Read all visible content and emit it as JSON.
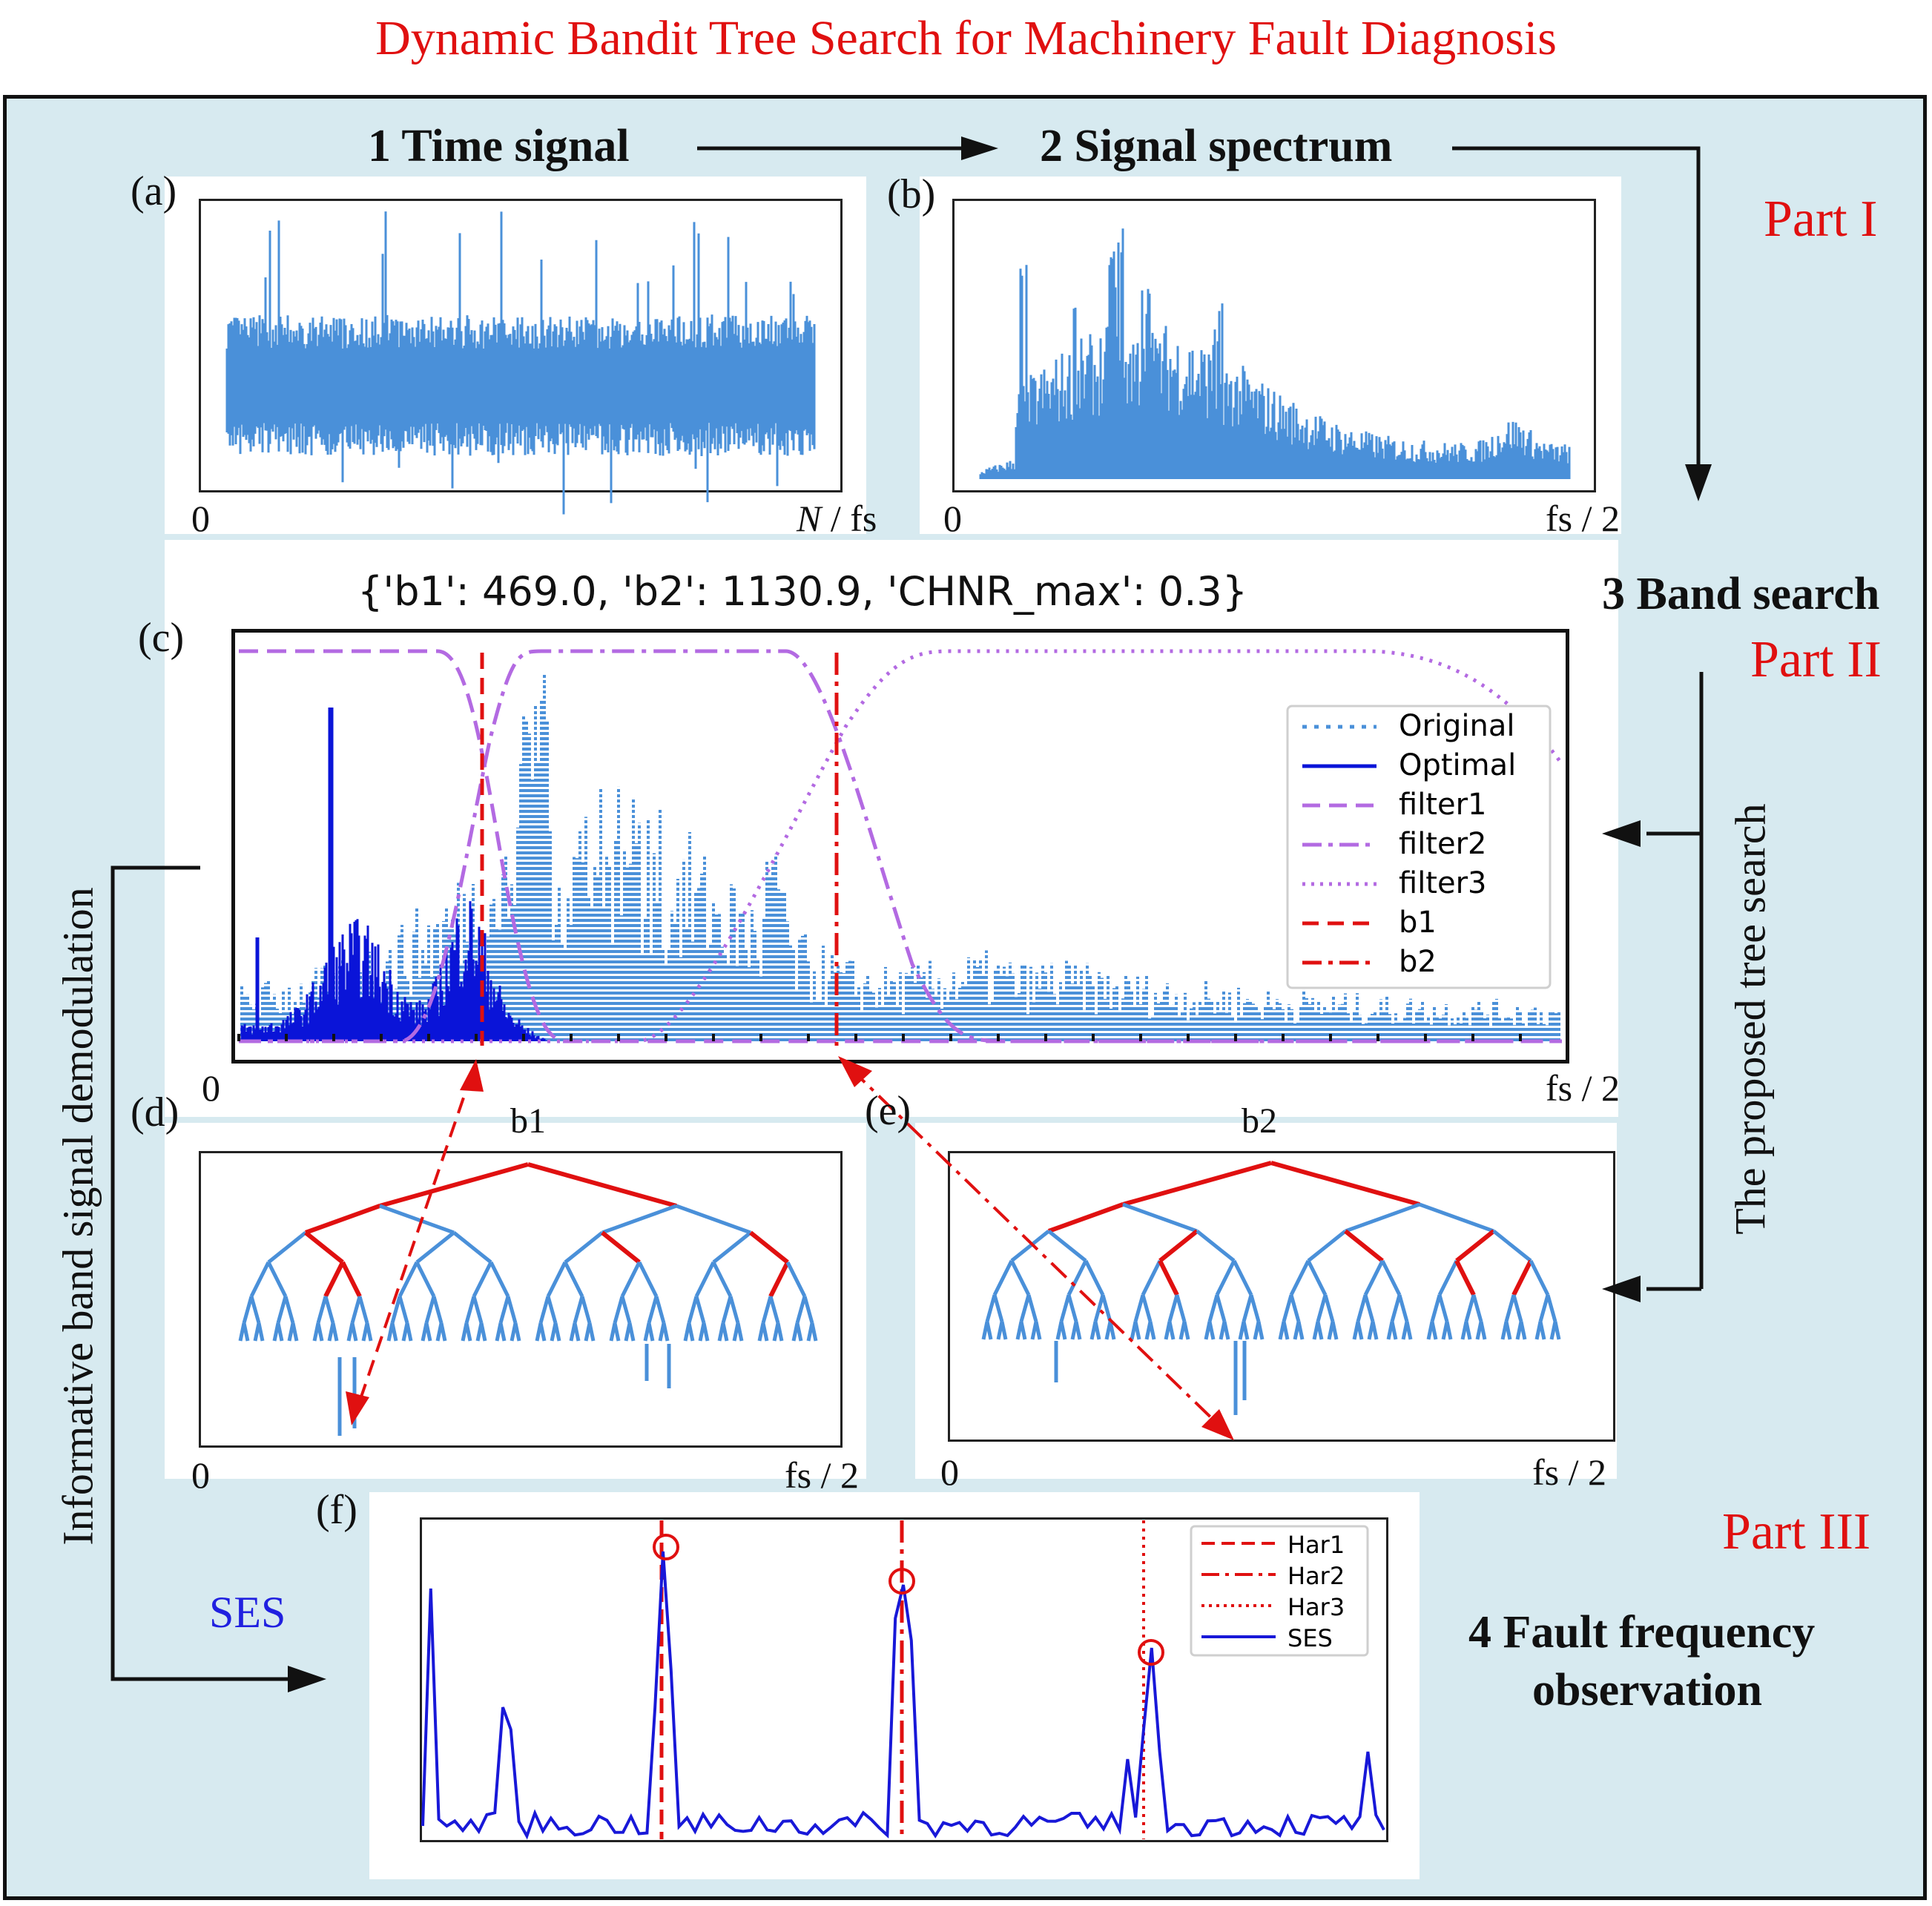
{
  "title": "Dynamic Bandit Tree Search for Machinery Fault Diagnosis",
  "steps": {
    "s1": "1 Time signal",
    "s2": "2 Signal spectrum",
    "s3": "3 Band search",
    "s4a": "4 Fault frequency",
    "s4b": "observation"
  },
  "parts": {
    "p1": "Part I",
    "p2": "Part II",
    "p3": "Part III"
  },
  "panels": {
    "a": "(a)",
    "b": "(b)",
    "c": "(c)",
    "d": "(d)",
    "e": "(e)",
    "f": "(f)"
  },
  "axes": {
    "zero": "0",
    "a_end_italic": "N",
    "a_end_rest": " / fs",
    "half_fs": "fs / 2"
  },
  "band_result": "{'b1': 469.0, 'b2': 1130.9, 'CHNR_max': 0.3}",
  "side_labels": {
    "left_vertical": "Informative band signal demodulation",
    "right_vertical": "The proposed  tree search",
    "ses": "SES"
  },
  "tree_labels": {
    "d": "b1",
    "e": "b2"
  },
  "legend_c": [
    "Original",
    "Optimal",
    "filter1",
    "filter2",
    "filter3",
    "b1",
    "b2"
  ],
  "legend_f": [
    "Har1",
    "Har2",
    "Har3",
    "SES"
  ],
  "colors": {
    "accent_red": "#e01010",
    "signal_blue": "#4a90d9",
    "optimal_blue": "#0a14d8",
    "filter_purple": "#b36ae2",
    "ses_blue": "#1818d8",
    "background": "#d7eaf0"
  },
  "chart_data": [
    {
      "id": "c",
      "type": "line",
      "title": "{'b1': 469.0, 'b2': 1130.9, 'CHNR_max': 0.3}",
      "series": [
        {
          "name": "Original"
        },
        {
          "name": "Optimal"
        },
        {
          "name": "filter1"
        },
        {
          "name": "filter2"
        },
        {
          "name": "filter3"
        },
        {
          "name": "b1",
          "x": 469.0
        },
        {
          "name": "b2",
          "x": 1130.9
        }
      ],
      "legend_position": "right"
    },
    {
      "id": "f",
      "type": "line",
      "series": [
        {
          "name": "Har1"
        },
        {
          "name": "Har2"
        },
        {
          "name": "Har3"
        },
        {
          "name": "SES"
        }
      ],
      "legend_position": "top-right"
    }
  ]
}
